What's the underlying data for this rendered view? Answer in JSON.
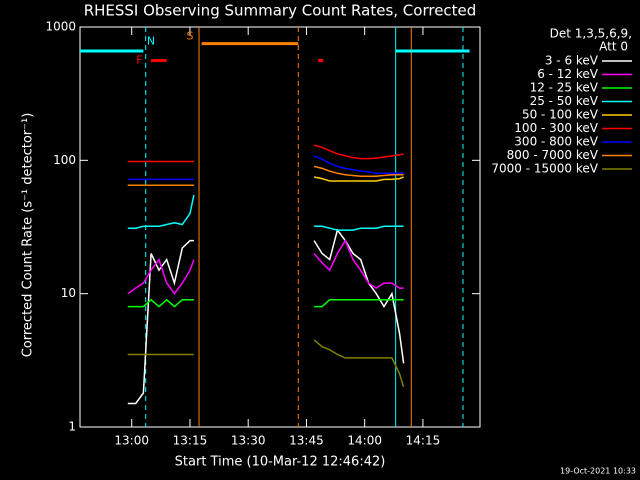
{
  "chart_data": {
    "type": "line",
    "title": "RHESSI Observing Summary Count Rates, Corrected",
    "x_label": "Start Time (10-Mar-12 12:46:42)",
    "y_label": "Corrected Count Rate (s⁻¹ detector⁻¹)",
    "legend_header": [
      "Det 1,3,5,6,9,",
      "Att 0"
    ],
    "footer": "19-Oct-2021 10:33",
    "log_y": true,
    "legend": "right",
    "background": "#000000",
    "xlim": [
      12.778,
      14.495
    ],
    "ylim": [
      1,
      1000
    ],
    "yticks": [
      1,
      10,
      100,
      1000
    ],
    "xticks": [
      {
        "value": 13.0,
        "label": "13:00"
      },
      {
        "value": 13.25,
        "label": "13:15"
      },
      {
        "value": 13.5,
        "label": "13:30"
      },
      {
        "value": 13.75,
        "label": "13:45"
      },
      {
        "value": 14.0,
        "label": "14:00"
      },
      {
        "value": 14.25,
        "label": "14:15"
      }
    ],
    "x": [
      12.983,
      13.017,
      13.05,
      13.083,
      13.117,
      13.15,
      13.183,
      13.217,
      13.25,
      13.267,
      13.5,
      13.783,
      13.817,
      13.85,
      13.883,
      13.917,
      13.95,
      13.983,
      14.017,
      14.05,
      14.083,
      14.117,
      14.15,
      14.167
    ],
    "series": [
      {
        "name": "3 - 6 keV",
        "color": "#ffffff",
        "values": [
          1.5,
          1.5,
          1.8,
          20,
          15,
          18,
          12,
          22,
          25,
          25,
          null,
          25,
          20,
          18,
          30,
          25,
          20,
          18,
          12,
          10,
          8,
          10,
          5,
          3
        ]
      },
      {
        "name": "6 - 12 keV",
        "color": "#ff00ff",
        "values": [
          10,
          11,
          12,
          15,
          18,
          12,
          10,
          12,
          15,
          18,
          null,
          20,
          17,
          15,
          20,
          25,
          18,
          15,
          12,
          11,
          12,
          12,
          11,
          11
        ]
      },
      {
        "name": "12 - 25 keV",
        "color": "#00ff00",
        "values": [
          8,
          8,
          8,
          9,
          8,
          9,
          8,
          9,
          9,
          9,
          null,
          8,
          8,
          9,
          9,
          9,
          9,
          9,
          9,
          9,
          9,
          9,
          9,
          9
        ]
      },
      {
        "name": "25 - 50 keV",
        "color": "#00ffff",
        "values": [
          31,
          31,
          32,
          32,
          32,
          33,
          34,
          33,
          40,
          55,
          null,
          32,
          32,
          31,
          30,
          30,
          30,
          31,
          31,
          31,
          32,
          32,
          32,
          32
        ]
      },
      {
        "name": "50 - 100 keV",
        "color": "#ffcc00",
        "values": [
          65,
          65,
          65,
          65,
          65,
          65,
          65,
          65,
          65,
          65,
          null,
          75,
          73,
          70,
          70,
          70,
          70,
          70,
          70,
          70,
          72,
          72,
          73,
          75
        ]
      },
      {
        "name": "100 - 300 keV",
        "color": "#ff0000",
        "values": [
          98,
          98,
          98,
          98,
          98,
          98,
          98,
          98,
          98,
          98,
          null,
          130,
          125,
          118,
          112,
          108,
          105,
          103,
          103,
          104,
          106,
          108,
          110,
          112
        ]
      },
      {
        "name": "300 - 800 keV",
        "color": "#0000ff",
        "values": [
          72,
          72,
          72,
          72,
          72,
          72,
          72,
          72,
          72,
          72,
          null,
          108,
          102,
          95,
          90,
          87,
          85,
          83,
          82,
          80,
          80,
          80,
          80,
          80
        ]
      },
      {
        "name": "800 - 7000 keV",
        "color": "#ff8000",
        "values": [
          65,
          65,
          65,
          65,
          65,
          65,
          65,
          65,
          65,
          65,
          null,
          90,
          87,
          83,
          80,
          78,
          77,
          76,
          76,
          76,
          77,
          78,
          78,
          78
        ]
      },
      {
        "name": "7000 - 15000 keV",
        "color": "#808000",
        "values": [
          3.5,
          3.5,
          3.5,
          3.5,
          3.5,
          3.5,
          3.5,
          3.5,
          3.5,
          3.5,
          null,
          4.5,
          4,
          3.8,
          3.5,
          3.3,
          3.3,
          3.3,
          3.3,
          3.3,
          3.3,
          3.3,
          2.5,
          2
        ]
      }
    ],
    "flag_lines": [
      {
        "color": "#00ffff",
        "x": [
          12.778,
          13.05
        ],
        "y": 660
      },
      {
        "color": "#00ffff",
        "x": [
          14.133,
          14.45
        ],
        "y": 660
      },
      {
        "color": "#ff8000",
        "x": [
          13.3,
          13.715
        ],
        "y": 750
      },
      {
        "color": "#ff0000",
        "x": [
          13.083,
          13.15
        ],
        "y": 560
      },
      {
        "color": "#ff0000",
        "x": [
          13.8,
          13.822
        ],
        "y": 560
      }
    ],
    "vlines": [
      {
        "color": "#00ffff",
        "x": 13.06,
        "dashed": true
      },
      {
        "color": "#ff8000",
        "x": 13.289,
        "dashed": false
      },
      {
        "color": "#ff8000",
        "x": 13.715,
        "dashed": true
      },
      {
        "color": "#00ffff",
        "x": 14.133,
        "dashed": false
      },
      {
        "color": "#ff8000",
        "x": 14.2,
        "dashed": false
      },
      {
        "color": "#00ffff",
        "x": 14.422,
        "dashed": true
      }
    ],
    "annotations": [
      {
        "text": "F",
        "color": "#ff0000",
        "x": 13.033,
        "y": 560
      },
      {
        "text": "N",
        "color": "#00ffff",
        "x": 13.083,
        "y": 780
      },
      {
        "text": "S",
        "color": "#ff8000",
        "x": 13.25,
        "y": 850
      }
    ]
  }
}
